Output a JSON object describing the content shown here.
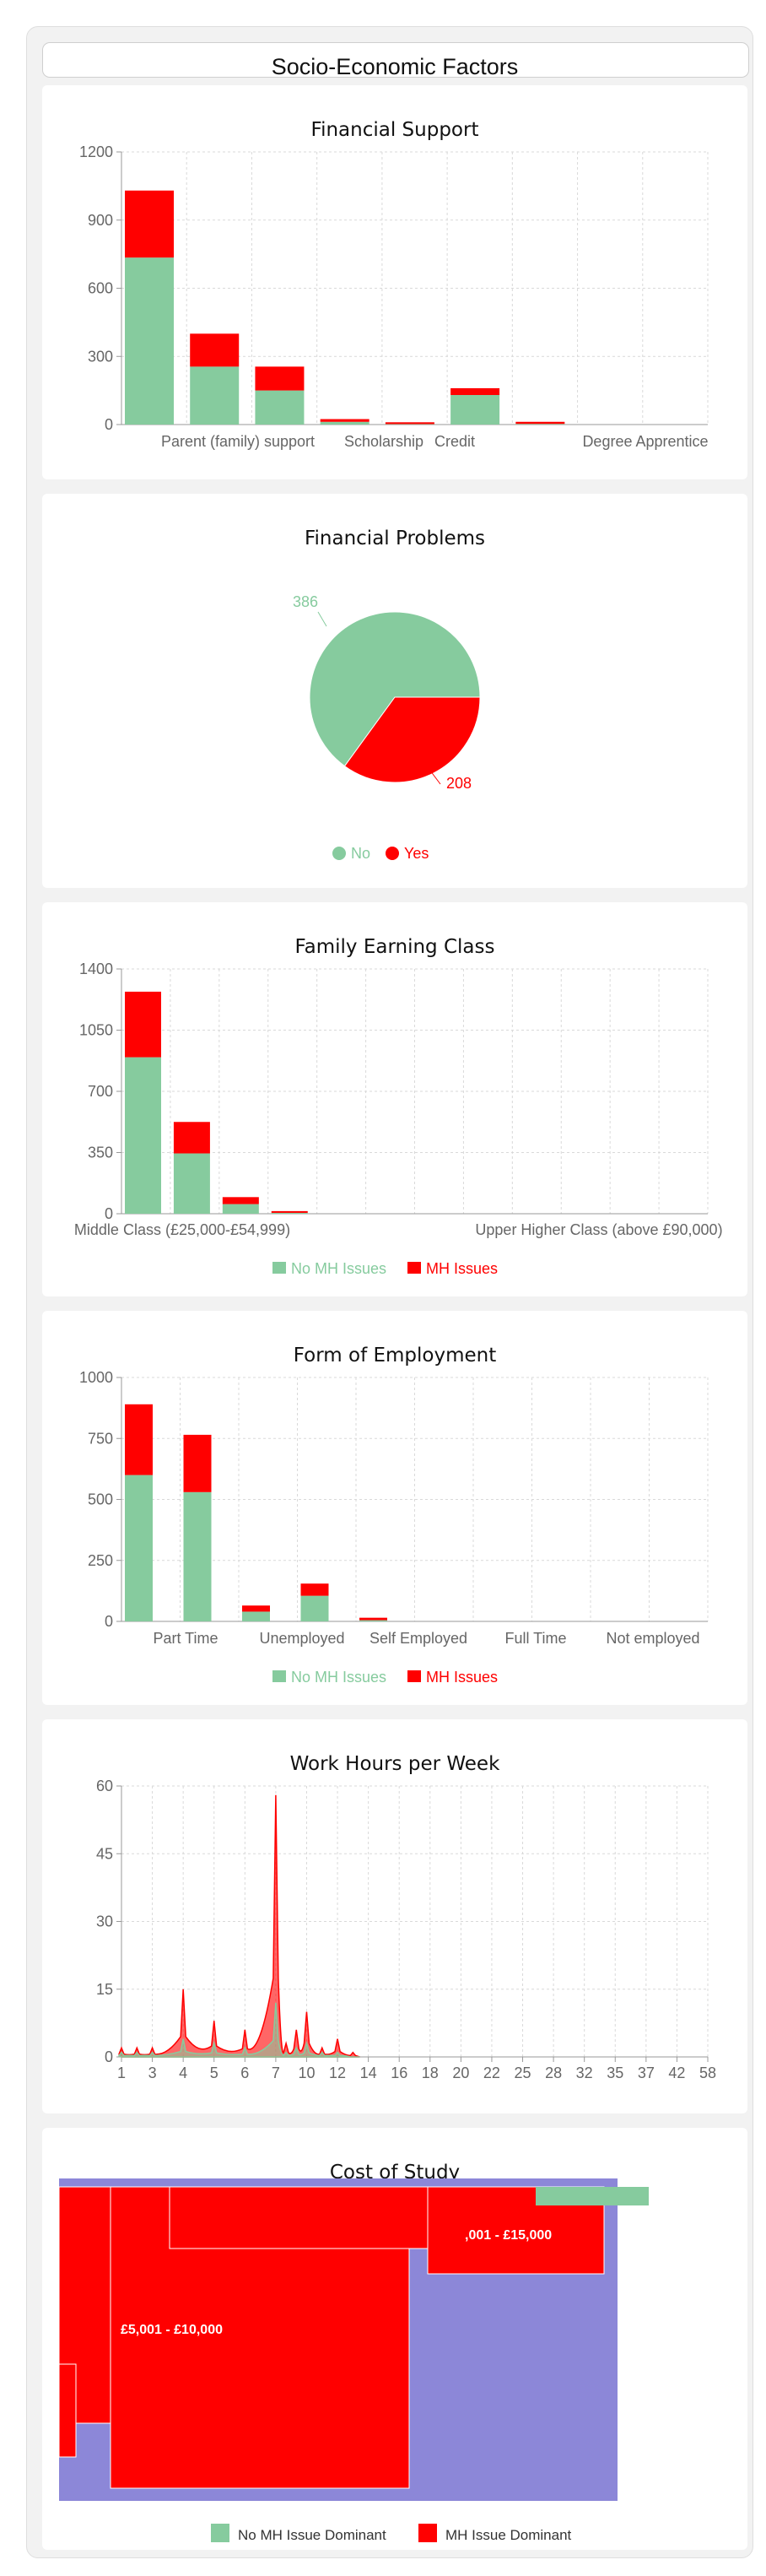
{
  "page": {
    "title": "Socio-Economic Factors"
  },
  "colors": {
    "no_mh": "#86cb9e",
    "mh": "#ff0000",
    "no_mh_dominant": "#8c87d8",
    "grid": "#d9d9d9",
    "axis": "#999999",
    "tick_text": "#666666"
  },
  "chart_data": [
    {
      "id": "financial_support",
      "type": "bar",
      "title": "Financial Support",
      "stacked": true,
      "ylim": [
        0,
        1200
      ],
      "yticks": [
        0,
        300,
        600,
        900,
        1200
      ],
      "tick_labels": [
        "Parent (family) support",
        "Scholarship",
        "Credit",
        "Degree Apprentice"
      ],
      "series": [
        {
          "values": [
            735,
            255,
            150,
            12,
            2,
            130,
            3,
            0,
            0
          ]
        },
        {
          "values": [
            295,
            145,
            105,
            12,
            8,
            30,
            9,
            0,
            0
          ]
        }
      ],
      "grid": true
    },
    {
      "id": "financial_problems",
      "type": "pie",
      "title": "Financial Problems",
      "slices": [
        {
          "label": "No",
          "value": 386
        },
        {
          "label": "Yes",
          "value": 208
        }
      ],
      "legend": "bottom"
    },
    {
      "id": "family_earning_class",
      "type": "bar",
      "title": "Family Earning Class",
      "stacked": true,
      "ylim": [
        0,
        1400
      ],
      "yticks": [
        0,
        350,
        700,
        1050,
        1400
      ],
      "tick_labels": [
        "Middle Class (£25,000-£54,999)",
        "Upper Higher Class (above £90,000)"
      ],
      "series": [
        {
          "name": "No MH Issues",
          "values": [
            895,
            345,
            55,
            5,
            0,
            0,
            0,
            0,
            0,
            0,
            0,
            0
          ]
        },
        {
          "name": "MH Issues",
          "values": [
            375,
            180,
            40,
            10,
            0,
            0,
            0,
            0,
            0,
            0,
            0,
            0
          ]
        }
      ],
      "legend": "bottom",
      "grid": true
    },
    {
      "id": "form_of_employment",
      "type": "bar",
      "title": "Form of Employment",
      "stacked": true,
      "ylim": [
        0,
        1000
      ],
      "yticks": [
        0,
        250,
        500,
        750,
        1000
      ],
      "tick_labels": [
        "Part Time",
        "Unemployed",
        "Self Employed",
        "Full Time",
        "Not employed"
      ],
      "series": [
        {
          "name": "No MH Issues",
          "values": [
            600,
            530,
            40,
            105,
            5,
            0,
            0,
            0,
            0,
            0
          ]
        },
        {
          "name": "MH Issues",
          "values": [
            290,
            235,
            25,
            50,
            10,
            0,
            0,
            0,
            0,
            0
          ]
        }
      ],
      "legend": "bottom",
      "grid": true
    },
    {
      "id": "work_hours",
      "type": "area",
      "title": "Work Hours per Week",
      "ylim": [
        0,
        60
      ],
      "yticks": [
        0,
        15,
        30,
        45,
        60
      ],
      "xticks": [
        1,
        3,
        4,
        5,
        6,
        7,
        10,
        12,
        14,
        16,
        18,
        20,
        22,
        25,
        28,
        32,
        35,
        37,
        42,
        58
      ],
      "x": [
        1,
        2,
        3,
        4,
        5,
        6,
        7,
        8,
        9,
        10,
        11,
        12,
        13
      ],
      "series": [
        {
          "values": [
            2,
            2,
            2,
            15,
            8,
            6,
            58,
            3,
            6,
            10,
            2,
            4,
            1
          ]
        },
        {
          "values": [
            1,
            1,
            1,
            4,
            3,
            2,
            12,
            1,
            2,
            3,
            1,
            1,
            0
          ]
        }
      ],
      "grid": true
    },
    {
      "id": "cost_of_study",
      "type": "treemap",
      "title": "Cost of Study",
      "labels": [
        "£5,001 - £10,000",
        ",001 - £15,000"
      ],
      "legend_entries": [
        "No MH Issue Dominant",
        "MH Issue Dominant"
      ],
      "legend": "bottom"
    }
  ]
}
